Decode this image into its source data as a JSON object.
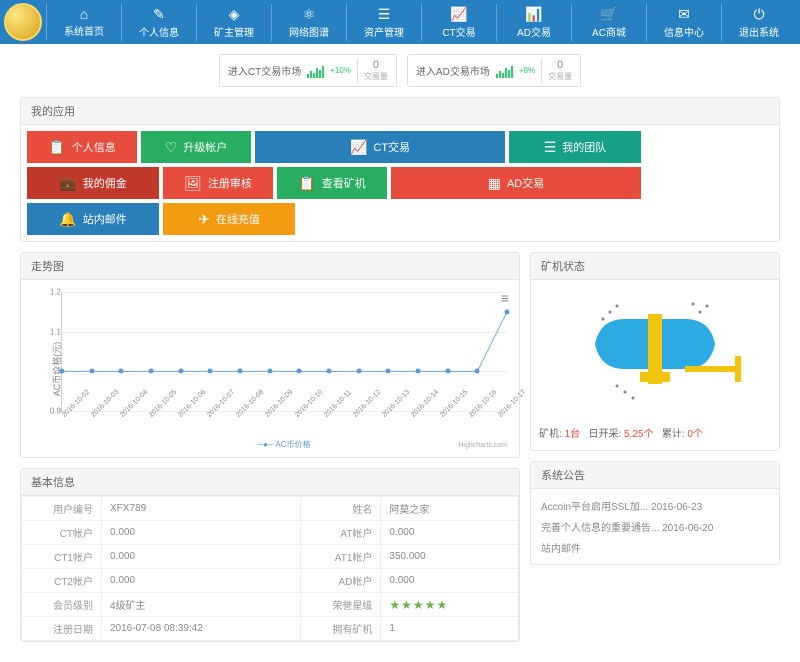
{
  "nav": [
    {
      "icon": "⌂",
      "label": "系统首页"
    },
    {
      "icon": "✎",
      "label": "个人信息"
    },
    {
      "icon": "◈",
      "label": "矿主管理"
    },
    {
      "icon": "⚛",
      "label": "网络图谱"
    },
    {
      "icon": "☰",
      "label": "资产管理"
    },
    {
      "icon": "📈",
      "label": "CT交易"
    },
    {
      "icon": "📊",
      "label": "AD交易"
    },
    {
      "icon": "🛒",
      "label": "AC商城"
    },
    {
      "icon": "✉",
      "label": "信息中心"
    },
    {
      "icon": "⏻",
      "label": "退出系统"
    }
  ],
  "market": [
    {
      "label": "进入CT交易市场",
      "pct": "+10%",
      "vol": "0",
      "volLabel": "交易量"
    },
    {
      "label": "进入AD交易市场",
      "pct": "+8%",
      "vol": "0",
      "volLabel": "交易量"
    }
  ],
  "appsTitle": "我的应用",
  "tiles": [
    {
      "icon": "📋",
      "label": "个人信息",
      "bg": "#e74c3c",
      "w": "w-s"
    },
    {
      "icon": "♡",
      "label": "升级帐户",
      "bg": "#27ae60",
      "w": "w-s"
    },
    {
      "icon": "📈",
      "label": "CT交易",
      "bg": "#2980b9",
      "w": "w-l"
    },
    {
      "icon": "☰",
      "label": "我的团队",
      "bg": "#16a085",
      "w": "w-m"
    },
    {
      "icon": "💼",
      "label": "我的佣金",
      "bg": "#c0392b",
      "w": "w-m"
    },
    {
      "icon": "🖼",
      "label": "注册审核",
      "bg": "#e74c3c",
      "w": "w-s"
    },
    {
      "icon": "📋",
      "label": "查看矿机",
      "bg": "#27ae60",
      "w": "w-s"
    },
    {
      "icon": "▦",
      "label": "AD交易",
      "bg": "#e74c3c",
      "w": "w-l"
    },
    {
      "icon": "🔔",
      "label": "站内邮件",
      "bg": "#2980b9",
      "w": "w-m"
    },
    {
      "icon": "✈",
      "label": "在线充值",
      "bg": "#f39c12",
      "w": "w-m"
    }
  ],
  "chart": {
    "title": "走势图",
    "ylabel": "AC币价格(元)",
    "yticks": [
      0.9,
      1.0,
      1.1,
      1.2
    ],
    "ylim": [
      0.9,
      1.2
    ],
    "xlabels": [
      "2016-10-02",
      "2016-10-03",
      "2016-10-04",
      "2016-10-05",
      "2016-10-06",
      "2016-10-07",
      "2016-10-08",
      "2016-10-09",
      "2016-10-10",
      "2016-10-11",
      "2016-10-12",
      "2016-10-13",
      "2016-10-14",
      "2016-10-15",
      "2016-10-16",
      "2016-10-17"
    ],
    "values": [
      1,
      1,
      1,
      1,
      1,
      1,
      1,
      1,
      1,
      1,
      1,
      1,
      1,
      1,
      1,
      1.15
    ],
    "series_color": "#5b9bd5",
    "legend": "AC币价格",
    "credits": "Highcharts.com"
  },
  "miner": {
    "title": "矿机状态",
    "status": [
      {
        "k": "矿机:",
        "v": "1台"
      },
      {
        "k": "日开采:",
        "v": "5.25个"
      },
      {
        "k": "累计:",
        "v": "0个"
      }
    ]
  },
  "info": {
    "title": "基本信息",
    "rows": [
      [
        "用户编号",
        "XFX789",
        "姓名",
        "阿莫之家"
      ],
      [
        "CT帐户",
        "0.000",
        "AT帐户",
        "0.000"
      ],
      [
        "CT1帐户",
        "0.000",
        "AT1帐户",
        "350.000"
      ],
      [
        "CT2帐户",
        "0.000",
        "AD帐户",
        "0.000"
      ],
      [
        "会员级别",
        "4级矿主",
        "荣誉星级",
        "★★★★★"
      ],
      [
        "注册日期",
        "2016-07-08 08:39:42",
        "拥有矿机",
        "1"
      ]
    ]
  },
  "notice": {
    "title": "系统公告",
    "items": [
      "Accoin平台启用SSL加... 2016-06-23",
      "完善个人信息的重要通告... 2016-06-20",
      "站内邮件"
    ]
  }
}
